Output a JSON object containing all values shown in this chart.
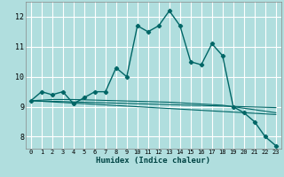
{
  "title": "",
  "xlabel": "Humidex (Indice chaleur)",
  "background_color": "#b0dede",
  "grid_color": "#ffffff",
  "line_color": "#006666",
  "x_data": [
    0,
    1,
    2,
    3,
    4,
    5,
    6,
    7,
    8,
    9,
    10,
    11,
    12,
    13,
    14,
    15,
    16,
    17,
    18,
    19,
    20,
    21,
    22,
    23
  ],
  "y_main": [
    9.2,
    9.5,
    9.4,
    9.5,
    9.1,
    9.3,
    9.5,
    9.5,
    10.3,
    10.0,
    11.7,
    11.5,
    11.7,
    12.2,
    11.7,
    10.5,
    10.4,
    11.1,
    10.7,
    9.0,
    8.8,
    8.5,
    8.0,
    7.7
  ],
  "y_line1": [
    9.2,
    9.18,
    9.16,
    9.14,
    9.12,
    9.1,
    9.08,
    9.06,
    9.04,
    9.02,
    9.0,
    8.98,
    8.96,
    8.94,
    8.92,
    8.9,
    8.88,
    8.86,
    8.84,
    8.82,
    8.8,
    8.78,
    8.76,
    8.74
  ],
  "y_line2": [
    9.2,
    9.19,
    9.18,
    9.17,
    9.16,
    9.15,
    9.14,
    9.13,
    9.12,
    9.11,
    9.1,
    9.09,
    9.08,
    9.07,
    9.06,
    9.05,
    9.04,
    9.03,
    9.02,
    9.01,
    9.0,
    8.99,
    8.98,
    8.97
  ],
  "y_line3": [
    9.2,
    9.22,
    9.24,
    9.24,
    9.24,
    9.23,
    9.22,
    9.21,
    9.2,
    9.19,
    9.18,
    9.17,
    9.16,
    9.15,
    9.13,
    9.11,
    9.09,
    9.07,
    9.05,
    9.0,
    8.95,
    8.9,
    8.85,
    8.8
  ],
  "xlim": [
    -0.5,
    23.5
  ],
  "ylim": [
    7.6,
    12.5
  ],
  "yticks": [
    8,
    9,
    10,
    11,
    12
  ],
  "xticks": [
    0,
    1,
    2,
    3,
    4,
    5,
    6,
    7,
    8,
    9,
    10,
    11,
    12,
    13,
    14,
    15,
    16,
    17,
    18,
    19,
    20,
    21,
    22,
    23
  ]
}
